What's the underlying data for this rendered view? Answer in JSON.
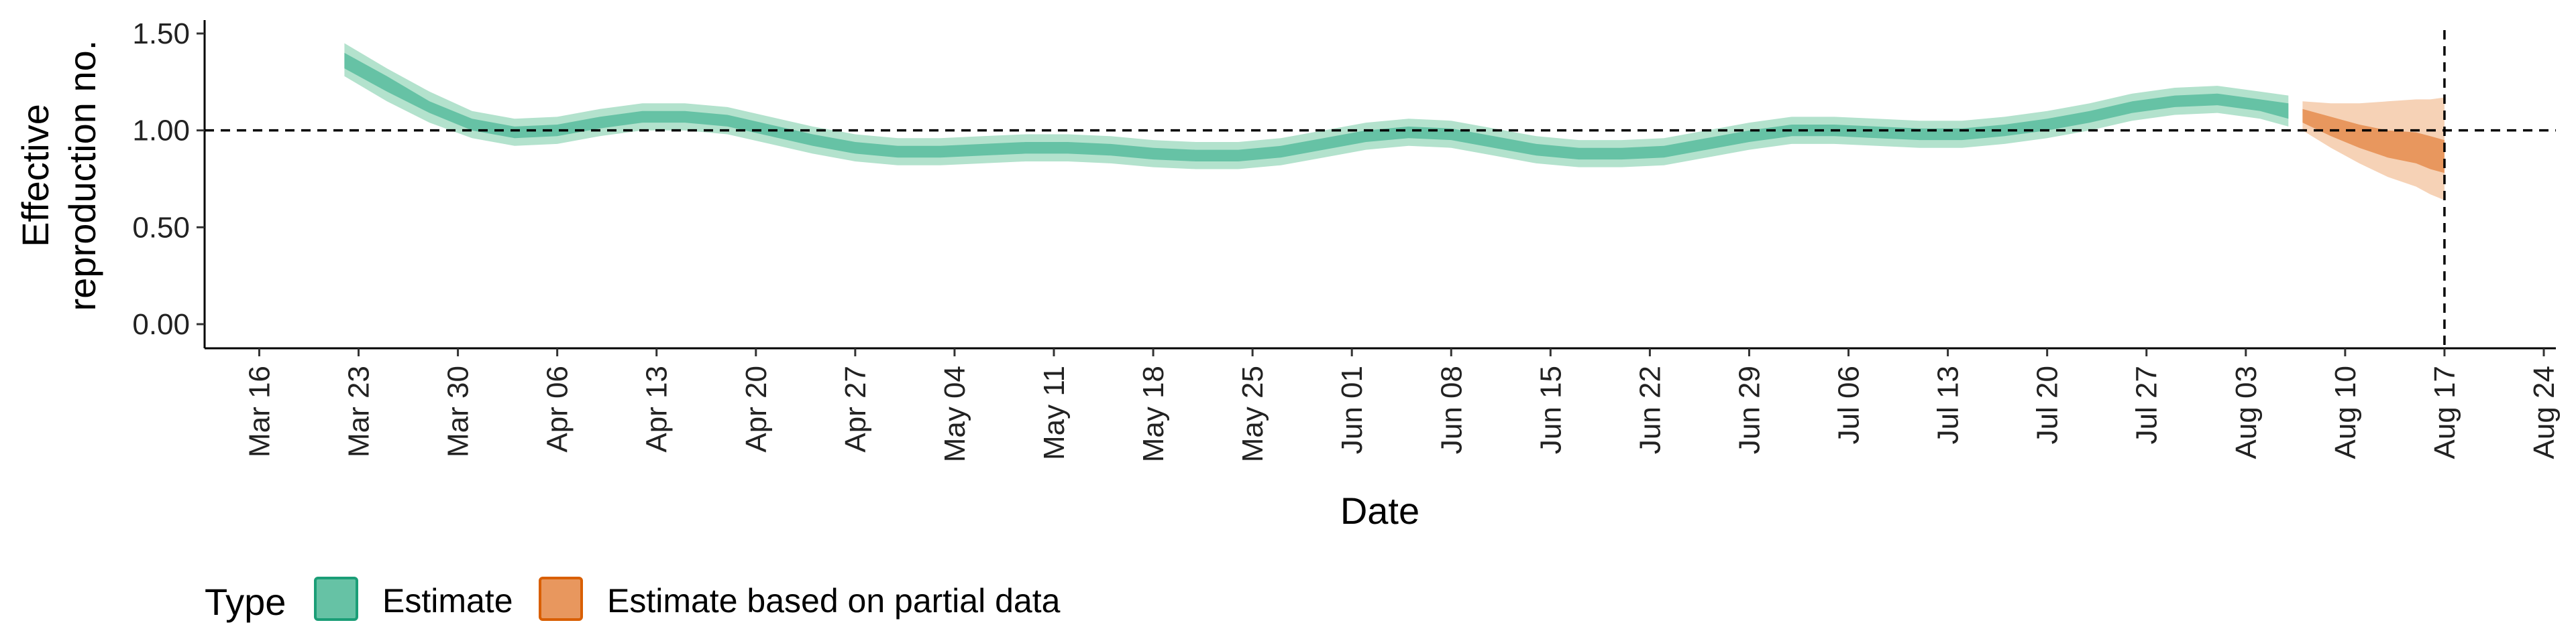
{
  "chart_data": {
    "type": "area",
    "title": "",
    "xlabel": "Date",
    "ylabel_lines": [
      "Effective",
      "reproduction no."
    ],
    "xlim": [
      "2020-03-13",
      "2020-08-24"
    ],
    "ylim": [
      0,
      1.5
    ],
    "yticks": [
      0,
      0.5,
      1.0,
      1.5
    ],
    "ytick_labels": [
      "0.00",
      "0.50",
      "1.00",
      "1.50"
    ],
    "xticks": [
      "2020-03-16",
      "2020-03-23",
      "2020-03-30",
      "2020-04-06",
      "2020-04-13",
      "2020-04-20",
      "2020-04-27",
      "2020-05-04",
      "2020-05-11",
      "2020-05-18",
      "2020-05-25",
      "2020-06-01",
      "2020-06-08",
      "2020-06-15",
      "2020-06-22",
      "2020-06-29",
      "2020-07-06",
      "2020-07-13",
      "2020-07-20",
      "2020-07-27",
      "2020-08-03",
      "2020-08-10",
      "2020-08-17",
      "2020-08-24"
    ],
    "xtick_labels": [
      "Mar 16",
      "Mar 23",
      "Mar 30",
      "Apr 06",
      "Apr 13",
      "Apr 20",
      "Apr 27",
      "May 04",
      "May 11",
      "May 18",
      "May 25",
      "Jun 01",
      "Jun 08",
      "Jun 15",
      "Jun 22",
      "Jun 29",
      "Jul 06",
      "Jul 13",
      "Jul 20",
      "Jul 27",
      "Aug 03",
      "Aug 10",
      "Aug 17",
      "Aug 24"
    ],
    "reference_lines": {
      "horizontal_y": 1.0,
      "vertical_x": "2020-08-17"
    },
    "grid": false,
    "legend": {
      "title": "Type",
      "position": "bottom-left",
      "entries": [
        {
          "label": "Estimate",
          "color": "#66c2a5",
          "border": "#1b9e77"
        },
        {
          "label": "Estimate based on partial data",
          "color": "#e8975e",
          "border": "#d95f02"
        }
      ]
    },
    "series": [
      {
        "name": "Estimate",
        "color_inner": "#66c2a5",
        "color_outer": "#b3e2cd",
        "x": [
          "2020-03-22",
          "2020-03-25",
          "2020-03-28",
          "2020-03-31",
          "2020-04-03",
          "2020-04-06",
          "2020-04-09",
          "2020-04-12",
          "2020-04-15",
          "2020-04-18",
          "2020-04-21",
          "2020-04-24",
          "2020-04-27",
          "2020-04-30",
          "2020-05-03",
          "2020-05-06",
          "2020-05-09",
          "2020-05-12",
          "2020-05-15",
          "2020-05-18",
          "2020-05-21",
          "2020-05-24",
          "2020-05-27",
          "2020-05-30",
          "2020-06-02",
          "2020-06-05",
          "2020-06-08",
          "2020-06-11",
          "2020-06-14",
          "2020-06-17",
          "2020-06-20",
          "2020-06-23",
          "2020-06-26",
          "2020-06-29",
          "2020-07-02",
          "2020-07-05",
          "2020-07-08",
          "2020-07-11",
          "2020-07-14",
          "2020-07-17",
          "2020-07-20",
          "2020-07-23",
          "2020-07-26",
          "2020-07-29",
          "2020-08-01",
          "2020-08-04",
          "2020-08-06"
        ],
        "median": [
          1.36,
          1.24,
          1.12,
          1.03,
          0.99,
          1.0,
          1.04,
          1.07,
          1.07,
          1.05,
          1.0,
          0.95,
          0.91,
          0.89,
          0.89,
          0.9,
          0.91,
          0.91,
          0.9,
          0.88,
          0.87,
          0.87,
          0.89,
          0.93,
          0.97,
          0.99,
          0.98,
          0.94,
          0.9,
          0.88,
          0.88,
          0.89,
          0.93,
          0.97,
          1.0,
          1.0,
          0.99,
          0.98,
          0.98,
          1.0,
          1.03,
          1.07,
          1.12,
          1.15,
          1.16,
          1.13,
          1.1
        ],
        "inner_lower": [
          1.32,
          1.2,
          1.09,
          1.0,
          0.96,
          0.97,
          1.01,
          1.04,
          1.04,
          1.02,
          0.97,
          0.92,
          0.88,
          0.86,
          0.86,
          0.87,
          0.88,
          0.88,
          0.87,
          0.85,
          0.84,
          0.84,
          0.86,
          0.9,
          0.94,
          0.96,
          0.95,
          0.91,
          0.87,
          0.85,
          0.85,
          0.86,
          0.9,
          0.94,
          0.97,
          0.97,
          0.96,
          0.95,
          0.95,
          0.97,
          1.0,
          1.04,
          1.09,
          1.12,
          1.13,
          1.1,
          1.06
        ],
        "inner_upper": [
          1.4,
          1.28,
          1.15,
          1.06,
          1.02,
          1.03,
          1.07,
          1.1,
          1.1,
          1.08,
          1.03,
          0.98,
          0.94,
          0.92,
          0.92,
          0.93,
          0.94,
          0.94,
          0.93,
          0.91,
          0.9,
          0.9,
          0.92,
          0.96,
          1.0,
          1.02,
          1.01,
          0.97,
          0.93,
          0.91,
          0.91,
          0.92,
          0.96,
          1.0,
          1.03,
          1.03,
          1.02,
          1.01,
          1.01,
          1.03,
          1.06,
          1.1,
          1.15,
          1.18,
          1.19,
          1.16,
          1.14
        ],
        "outer_lower": [
          1.28,
          1.15,
          1.04,
          0.96,
          0.92,
          0.93,
          0.97,
          1.0,
          1.0,
          0.98,
          0.93,
          0.88,
          0.84,
          0.82,
          0.82,
          0.83,
          0.84,
          0.84,
          0.83,
          0.81,
          0.8,
          0.8,
          0.82,
          0.86,
          0.9,
          0.92,
          0.91,
          0.87,
          0.83,
          0.81,
          0.81,
          0.82,
          0.86,
          0.9,
          0.93,
          0.93,
          0.92,
          0.91,
          0.91,
          0.93,
          0.96,
          1.0,
          1.05,
          1.08,
          1.09,
          1.06,
          1.02
        ],
        "outer_upper": [
          1.45,
          1.32,
          1.2,
          1.1,
          1.06,
          1.07,
          1.11,
          1.14,
          1.14,
          1.12,
          1.07,
          1.02,
          0.98,
          0.96,
          0.96,
          0.97,
          0.98,
          0.98,
          0.97,
          0.95,
          0.94,
          0.94,
          0.96,
          1.0,
          1.04,
          1.06,
          1.05,
          1.01,
          0.97,
          0.95,
          0.95,
          0.96,
          1.0,
          1.04,
          1.07,
          1.07,
          1.06,
          1.05,
          1.05,
          1.07,
          1.1,
          1.14,
          1.19,
          1.22,
          1.23,
          1.2,
          1.18
        ]
      },
      {
        "name": "Estimate based on partial data",
        "color_inner": "#e8975e",
        "color_outer": "#f6d2b6",
        "x": [
          "2020-08-07",
          "2020-08-09",
          "2020-08-11",
          "2020-08-13",
          "2020-08-15",
          "2020-08-16",
          "2020-08-17"
        ],
        "median": [
          1.07,
          1.02,
          0.97,
          0.93,
          0.89,
          0.88,
          0.85
        ],
        "inner_lower": [
          1.04,
          0.97,
          0.91,
          0.86,
          0.83,
          0.8,
          0.78
        ],
        "inner_upper": [
          1.11,
          1.07,
          1.03,
          1.0,
          0.99,
          0.97,
          0.95
        ],
        "outer_lower": [
          1.0,
          0.91,
          0.83,
          0.76,
          0.71,
          0.67,
          0.64
        ],
        "outer_upper": [
          1.15,
          1.14,
          1.14,
          1.15,
          1.16,
          1.16,
          1.17
        ]
      }
    ]
  }
}
